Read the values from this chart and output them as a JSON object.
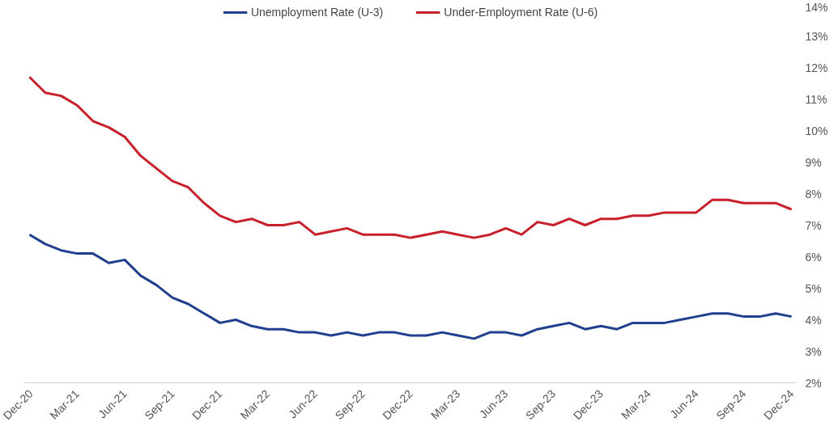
{
  "chart_data": {
    "type": "line",
    "categories": [
      "Dec-20",
      null,
      null,
      "Mar-21",
      null,
      null,
      "Jun-21",
      null,
      null,
      "Sep-21",
      null,
      null,
      "Dec-21",
      null,
      null,
      "Mar-22",
      null,
      null,
      "Jun-22",
      null,
      null,
      "Sep-22",
      null,
      null,
      "Dec-22",
      null,
      null,
      "Mar-23",
      null,
      null,
      "Jun-23",
      null,
      null,
      "Sep-23",
      null,
      null,
      "Dec-23",
      null,
      null,
      "Mar-24",
      null,
      null,
      "Jun-24",
      null,
      null,
      "Sep-24",
      null,
      null,
      "Dec-24"
    ],
    "series": [
      {
        "name": "Unemployment Rate (U-3)",
        "color": "#213f8f",
        "values": [
          6.7,
          6.4,
          6.2,
          6.1,
          6.1,
          5.8,
          5.9,
          5.4,
          5.1,
          4.7,
          4.5,
          4.2,
          3.9,
          4.0,
          3.8,
          3.7,
          3.7,
          3.6,
          3.6,
          3.5,
          3.6,
          3.5,
          3.6,
          3.6,
          3.5,
          3.5,
          3.6,
          3.5,
          3.4,
          3.6,
          3.6,
          3.5,
          3.7,
          3.8,
          3.9,
          3.7,
          3.8,
          3.7,
          3.9,
          3.9,
          3.9,
          4.0,
          4.1,
          4.2,
          4.2,
          4.1,
          4.1,
          4.2,
          4.1
        ]
      },
      {
        "name": "Under-Employment Rate (U-6)",
        "color": "#c8202a",
        "values": [
          11.7,
          11.2,
          11.1,
          10.8,
          10.3,
          10.1,
          9.8,
          9.2,
          8.8,
          8.4,
          8.2,
          7.7,
          7.3,
          7.1,
          7.2,
          7.0,
          7.0,
          7.1,
          6.7,
          6.8,
          6.9,
          6.7,
          6.7,
          6.7,
          6.6,
          6.7,
          6.8,
          6.7,
          6.6,
          6.7,
          6.9,
          6.7,
          7.1,
          7.0,
          7.2,
          7.0,
          7.2,
          7.2,
          7.3,
          7.3,
          7.4,
          7.4,
          7.4,
          7.8,
          7.8,
          7.7,
          7.7,
          7.7,
          7.5
        ]
      }
    ],
    "ylim": [
      2,
      14
    ],
    "yticks": [
      {
        "value": 2,
        "label": "2%"
      },
      {
        "value": 3,
        "label": "3%"
      },
      {
        "value": 4,
        "label": "4%"
      },
      {
        "value": 5,
        "label": "5%"
      },
      {
        "value": 6,
        "label": "6%"
      },
      {
        "value": 7,
        "label": "7%"
      },
      {
        "value": 8,
        "label": "8%"
      },
      {
        "value": 9,
        "label": "9%"
      },
      {
        "value": 10,
        "label": "10%"
      },
      {
        "value": 11,
        "label": "11%"
      },
      {
        "value": 12,
        "label": "12%"
      },
      {
        "value": 13,
        "label": "13%"
      },
      {
        "value": 14,
        "label": "14%"
      }
    ],
    "grid": false,
    "legend": "top",
    "marker": "none",
    "line_style": "solid"
  }
}
